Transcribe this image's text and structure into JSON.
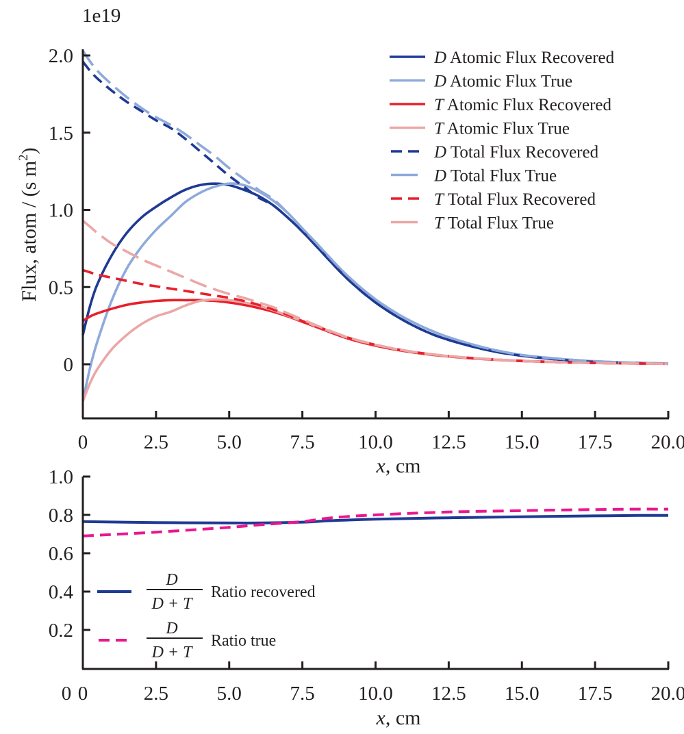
{
  "chart_data": [
    {
      "type": "line",
      "title": "",
      "offset_label": "1e19",
      "xlabel": "x, cm",
      "xlabel_var": "x",
      "xlabel_unit": ", cm",
      "ylabel": "Flux, atom / (s m2)",
      "ylabel_main": "Flux, atom / (s m",
      "ylabel_sup": "2",
      "ylabel_end": ")",
      "xlim": [
        0,
        20
      ],
      "ylim": [
        -0.35,
        2.05
      ],
      "xticks": [
        0,
        2.5,
        5.0,
        7.5,
        10.0,
        12.5,
        15.0,
        17.5,
        20.0
      ],
      "xtick_labels": [
        "0",
        "2.5",
        "5.0",
        "7.5",
        "10.0",
        "12.5",
        "15.0",
        "17.5",
        "20.0"
      ],
      "yticks": [
        0,
        0.5,
        1.0,
        1.5,
        2.0
      ],
      "ytick_labels": [
        "0",
        "0.5",
        "1.0",
        "1.5",
        "2.0"
      ],
      "grid": false,
      "legend_position": "top-right",
      "x": [
        0,
        0.25,
        0.5,
        1,
        1.5,
        2,
        2.5,
        3,
        3.5,
        4,
        4.5,
        5,
        5.5,
        6,
        6.5,
        7,
        7.5,
        8,
        9,
        10,
        11,
        12,
        13,
        14,
        15,
        16,
        17,
        18,
        19,
        20
      ],
      "series": [
        {
          "name": "D Atomic Flux Recovered",
          "label_var": "D",
          "label_text": " Atomic Flux Recovered",
          "color": "#1f3a93",
          "dash": "solid",
          "values": [
            0.19,
            0.38,
            0.52,
            0.71,
            0.85,
            0.95,
            1.02,
            1.08,
            1.13,
            1.16,
            1.17,
            1.16,
            1.13,
            1.09,
            1.03,
            0.95,
            0.86,
            0.76,
            0.56,
            0.4,
            0.28,
            0.19,
            0.13,
            0.085,
            0.055,
            0.035,
            0.02,
            0.012,
            0.007,
            0.004
          ]
        },
        {
          "name": "D Atomic Flux True",
          "label_var": "D",
          "label_text": " Atomic Flux True",
          "color": "#8eaadb",
          "dash": "solid",
          "values": [
            -0.24,
            -0.02,
            0.15,
            0.42,
            0.62,
            0.76,
            0.87,
            0.96,
            1.05,
            1.11,
            1.15,
            1.17,
            1.16,
            1.12,
            1.06,
            0.98,
            0.88,
            0.78,
            0.58,
            0.42,
            0.3,
            0.21,
            0.145,
            0.095,
            0.06,
            0.04,
            0.025,
            0.015,
            0.009,
            0.005
          ]
        },
        {
          "name": "T Atomic Flux Recovered",
          "label_var": "T",
          "label_text": " Atomic Flux Recovered",
          "color": "#e8202a",
          "dash": "solid",
          "values": [
            0.28,
            0.31,
            0.33,
            0.36,
            0.385,
            0.4,
            0.41,
            0.415,
            0.415,
            0.415,
            0.41,
            0.4,
            0.385,
            0.365,
            0.34,
            0.31,
            0.275,
            0.24,
            0.17,
            0.12,
            0.085,
            0.06,
            0.042,
            0.03,
            0.021,
            0.015,
            0.01,
            0.007,
            0.005,
            0.003
          ]
        },
        {
          "name": "T Atomic Flux True",
          "label_var": "T",
          "label_text": " Atomic Flux True",
          "color": "#eba7a7",
          "dash": "solid",
          "values": [
            -0.24,
            -0.12,
            -0.03,
            0.1,
            0.19,
            0.26,
            0.31,
            0.34,
            0.38,
            0.41,
            0.42,
            0.415,
            0.4,
            0.38,
            0.35,
            0.315,
            0.28,
            0.245,
            0.175,
            0.125,
            0.088,
            0.062,
            0.044,
            0.031,
            0.022,
            0.015,
            0.01,
            0.007,
            0.005,
            0.003
          ]
        },
        {
          "name": "D Total Flux Recovered",
          "label_var": "D",
          "label_text": " Total Flux Recovered",
          "color": "#1f3a93",
          "dash": "dashed",
          "values": [
            1.96,
            1.9,
            1.85,
            1.77,
            1.7,
            1.64,
            1.58,
            1.53,
            1.46,
            1.38,
            1.3,
            1.22,
            1.15,
            1.08,
            1.03,
            0.95,
            0.86,
            0.76,
            0.56,
            0.4,
            0.28,
            0.19,
            0.13,
            0.085,
            0.055,
            0.035,
            0.02,
            0.012,
            0.007,
            0.004
          ]
        },
        {
          "name": "D Total Flux True",
          "label_var": "D",
          "label_text": " Total Flux True",
          "color": "#8eaadb",
          "dash": "longdash",
          "values": [
            2.03,
            1.96,
            1.9,
            1.81,
            1.73,
            1.66,
            1.6,
            1.55,
            1.49,
            1.42,
            1.35,
            1.27,
            1.2,
            1.13,
            1.07,
            0.98,
            0.88,
            0.78,
            0.58,
            0.42,
            0.3,
            0.21,
            0.145,
            0.095,
            0.06,
            0.04,
            0.025,
            0.015,
            0.009,
            0.005
          ]
        },
        {
          "name": "T Total Flux Recovered",
          "label_var": "T",
          "label_text": " Total Flux Recovered",
          "color": "#e8202a",
          "dash": "dashed",
          "values": [
            0.61,
            0.595,
            0.58,
            0.56,
            0.54,
            0.52,
            0.505,
            0.49,
            0.475,
            0.46,
            0.445,
            0.43,
            0.41,
            0.385,
            0.355,
            0.32,
            0.28,
            0.245,
            0.175,
            0.125,
            0.088,
            0.062,
            0.044,
            0.031,
            0.022,
            0.015,
            0.01,
            0.007,
            0.005,
            0.003
          ]
        },
        {
          "name": "T Total Flux True",
          "label_var": "T",
          "label_text": " Total Flux True",
          "color": "#eba7a7",
          "dash": "longdash",
          "values": [
            0.93,
            0.89,
            0.85,
            0.78,
            0.73,
            0.68,
            0.64,
            0.6,
            0.56,
            0.52,
            0.485,
            0.455,
            0.43,
            0.4,
            0.37,
            0.33,
            0.29,
            0.25,
            0.178,
            0.127,
            0.089,
            0.063,
            0.045,
            0.032,
            0.022,
            0.015,
            0.01,
            0.007,
            0.005,
            0.003
          ]
        }
      ]
    },
    {
      "type": "line",
      "title": "",
      "xlabel": "x, cm",
      "xlabel_var": "x",
      "xlabel_unit": ", cm",
      "ylabel": "",
      "xlim": [
        0,
        20
      ],
      "ylim": [
        0,
        1.0
      ],
      "xticks": [
        0,
        2.5,
        5.0,
        7.5,
        10.0,
        12.5,
        15.0,
        17.5,
        20.0
      ],
      "xtick_labels": [
        "0",
        "2.5",
        "5.0",
        "7.5",
        "10.0",
        "12.5",
        "15.0",
        "17.5",
        "20.0"
      ],
      "yticks": [
        0.2,
        0.4,
        0.6,
        0.8,
        1.0
      ],
      "ytick_labels": [
        "0.2",
        "0.4",
        "0.6",
        "0.8",
        "1.0"
      ],
      "grid": false,
      "legend_position": "center-left",
      "x": [
        0,
        2.5,
        5,
        6,
        7.5,
        8.5,
        10,
        12.5,
        15,
        17.5,
        19,
        20
      ],
      "series": [
        {
          "name": "D/(D+T) Ratio recovered",
          "frac_num": "D",
          "frac_den": "D + T",
          "label_text": "Ratio recovered",
          "color": "#1f3a93",
          "dash": "solid",
          "values": [
            0.765,
            0.76,
            0.758,
            0.758,
            0.762,
            0.77,
            0.778,
            0.785,
            0.79,
            0.795,
            0.797,
            0.797
          ]
        },
        {
          "name": "D/(D+T) Ratio true",
          "frac_num": "D",
          "frac_den": "D + T",
          "label_text": "Ratio true",
          "color": "#e8188f",
          "dash": "dashed",
          "values": [
            0.69,
            0.71,
            0.735,
            0.748,
            0.765,
            0.785,
            0.8,
            0.815,
            0.822,
            0.828,
            0.83,
            0.83
          ]
        }
      ]
    }
  ]
}
